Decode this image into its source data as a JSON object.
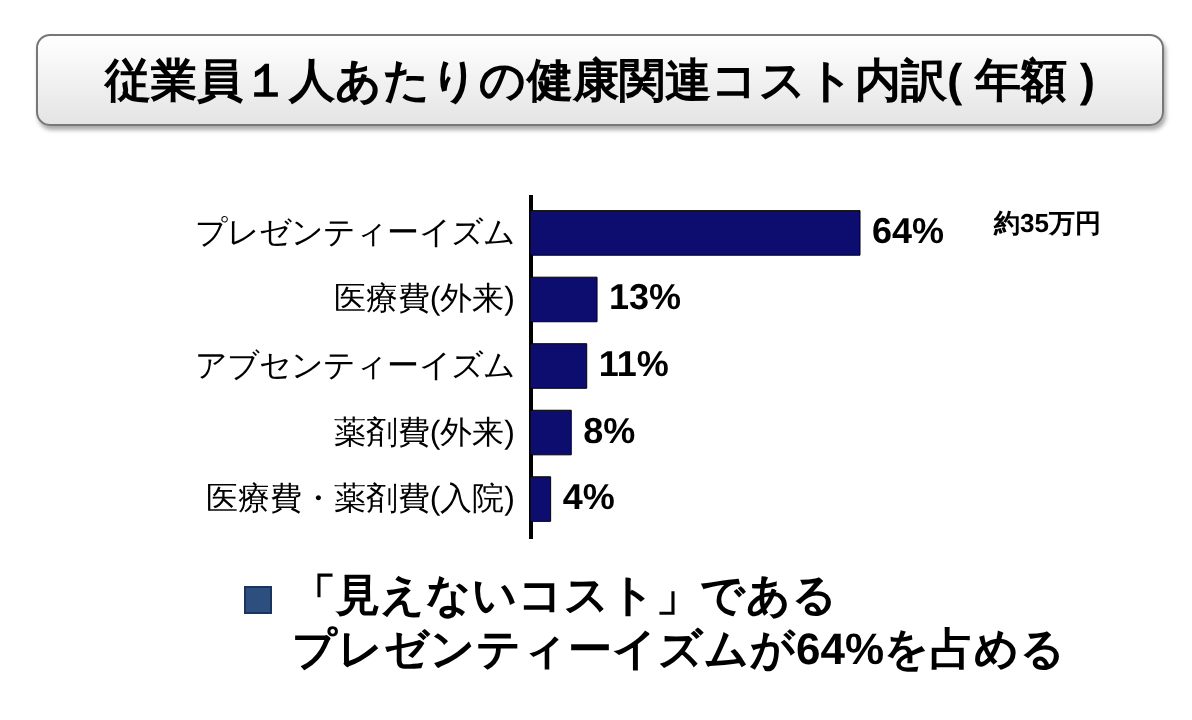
{
  "chart_data": {
    "type": "bar",
    "orientation": "horizontal",
    "title": "従業員１人あたりの健康関連コスト内訳( 年額 )",
    "categories": [
      "プレゼンティーイズム",
      "医療費(外来)",
      "アブセンティーイズム",
      "薬剤費(外来)",
      "医療費・薬剤費(入院)"
    ],
    "values": [
      64,
      13,
      11,
      8,
      4
    ],
    "value_labels": [
      "64%",
      "13%",
      "11%",
      "8%",
      "4%"
    ],
    "color": "#0d0d70",
    "tick_labels": "y",
    "grid": false,
    "annotations": [
      "約35万円",
      "「見えないコスト」である",
      "プレゼンティーイズムが64%を占める"
    ]
  }
}
